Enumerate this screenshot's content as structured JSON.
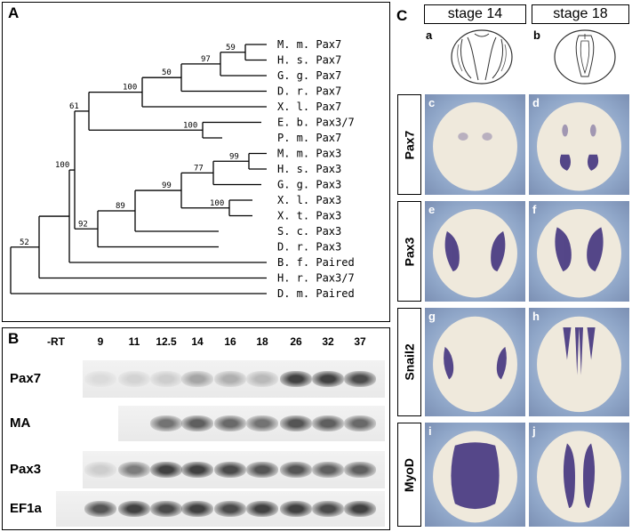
{
  "panelA": {
    "letter": "A",
    "taxa": [
      "M. m. Pax7",
      "H. s. Pax7",
      "G. g. Pax7",
      "D. r. Pax7",
      "X. l. Pax7",
      "E. b. Pax3/7",
      "P. m. Pax7",
      "M. m. Pax3",
      "H. s. Pax3",
      "G. g. Pax3",
      "X. l. Pax3",
      "X. t. Pax3",
      "S. c. Pax3",
      "D. r. Pax3",
      "B. f. Paired",
      "H. r. Pax3/7",
      "D. m. Paired"
    ],
    "bootstraps": [
      "59",
      "97",
      "50",
      "100",
      "61",
      "100",
      "99",
      "77",
      "99",
      "100",
      "89",
      "92",
      "100",
      "52"
    ]
  },
  "panelB": {
    "letter": "B",
    "lanes": [
      "-RT",
      "9",
      "11",
      "12.5",
      "14",
      "16",
      "18",
      "26",
      "32",
      "37"
    ],
    "rows": [
      "Pax7",
      "MA",
      "Pax3",
      "EF1a"
    ]
  },
  "panelC": {
    "letter": "C",
    "stages": [
      "stage 14",
      "stage 18"
    ],
    "schematic_letters": [
      "a",
      "b"
    ],
    "genes": [
      "Pax7",
      "Pax3",
      "Snail2",
      "MyoD"
    ],
    "tile_letters": [
      [
        "c",
        "d"
      ],
      [
        "e",
        "f"
      ],
      [
        "g",
        "h"
      ],
      [
        "i",
        "j"
      ]
    ],
    "colors": {
      "stain": "#3a2a7a",
      "bg_blue": "#8fa6c8",
      "embryo": "#efe9dc"
    }
  }
}
